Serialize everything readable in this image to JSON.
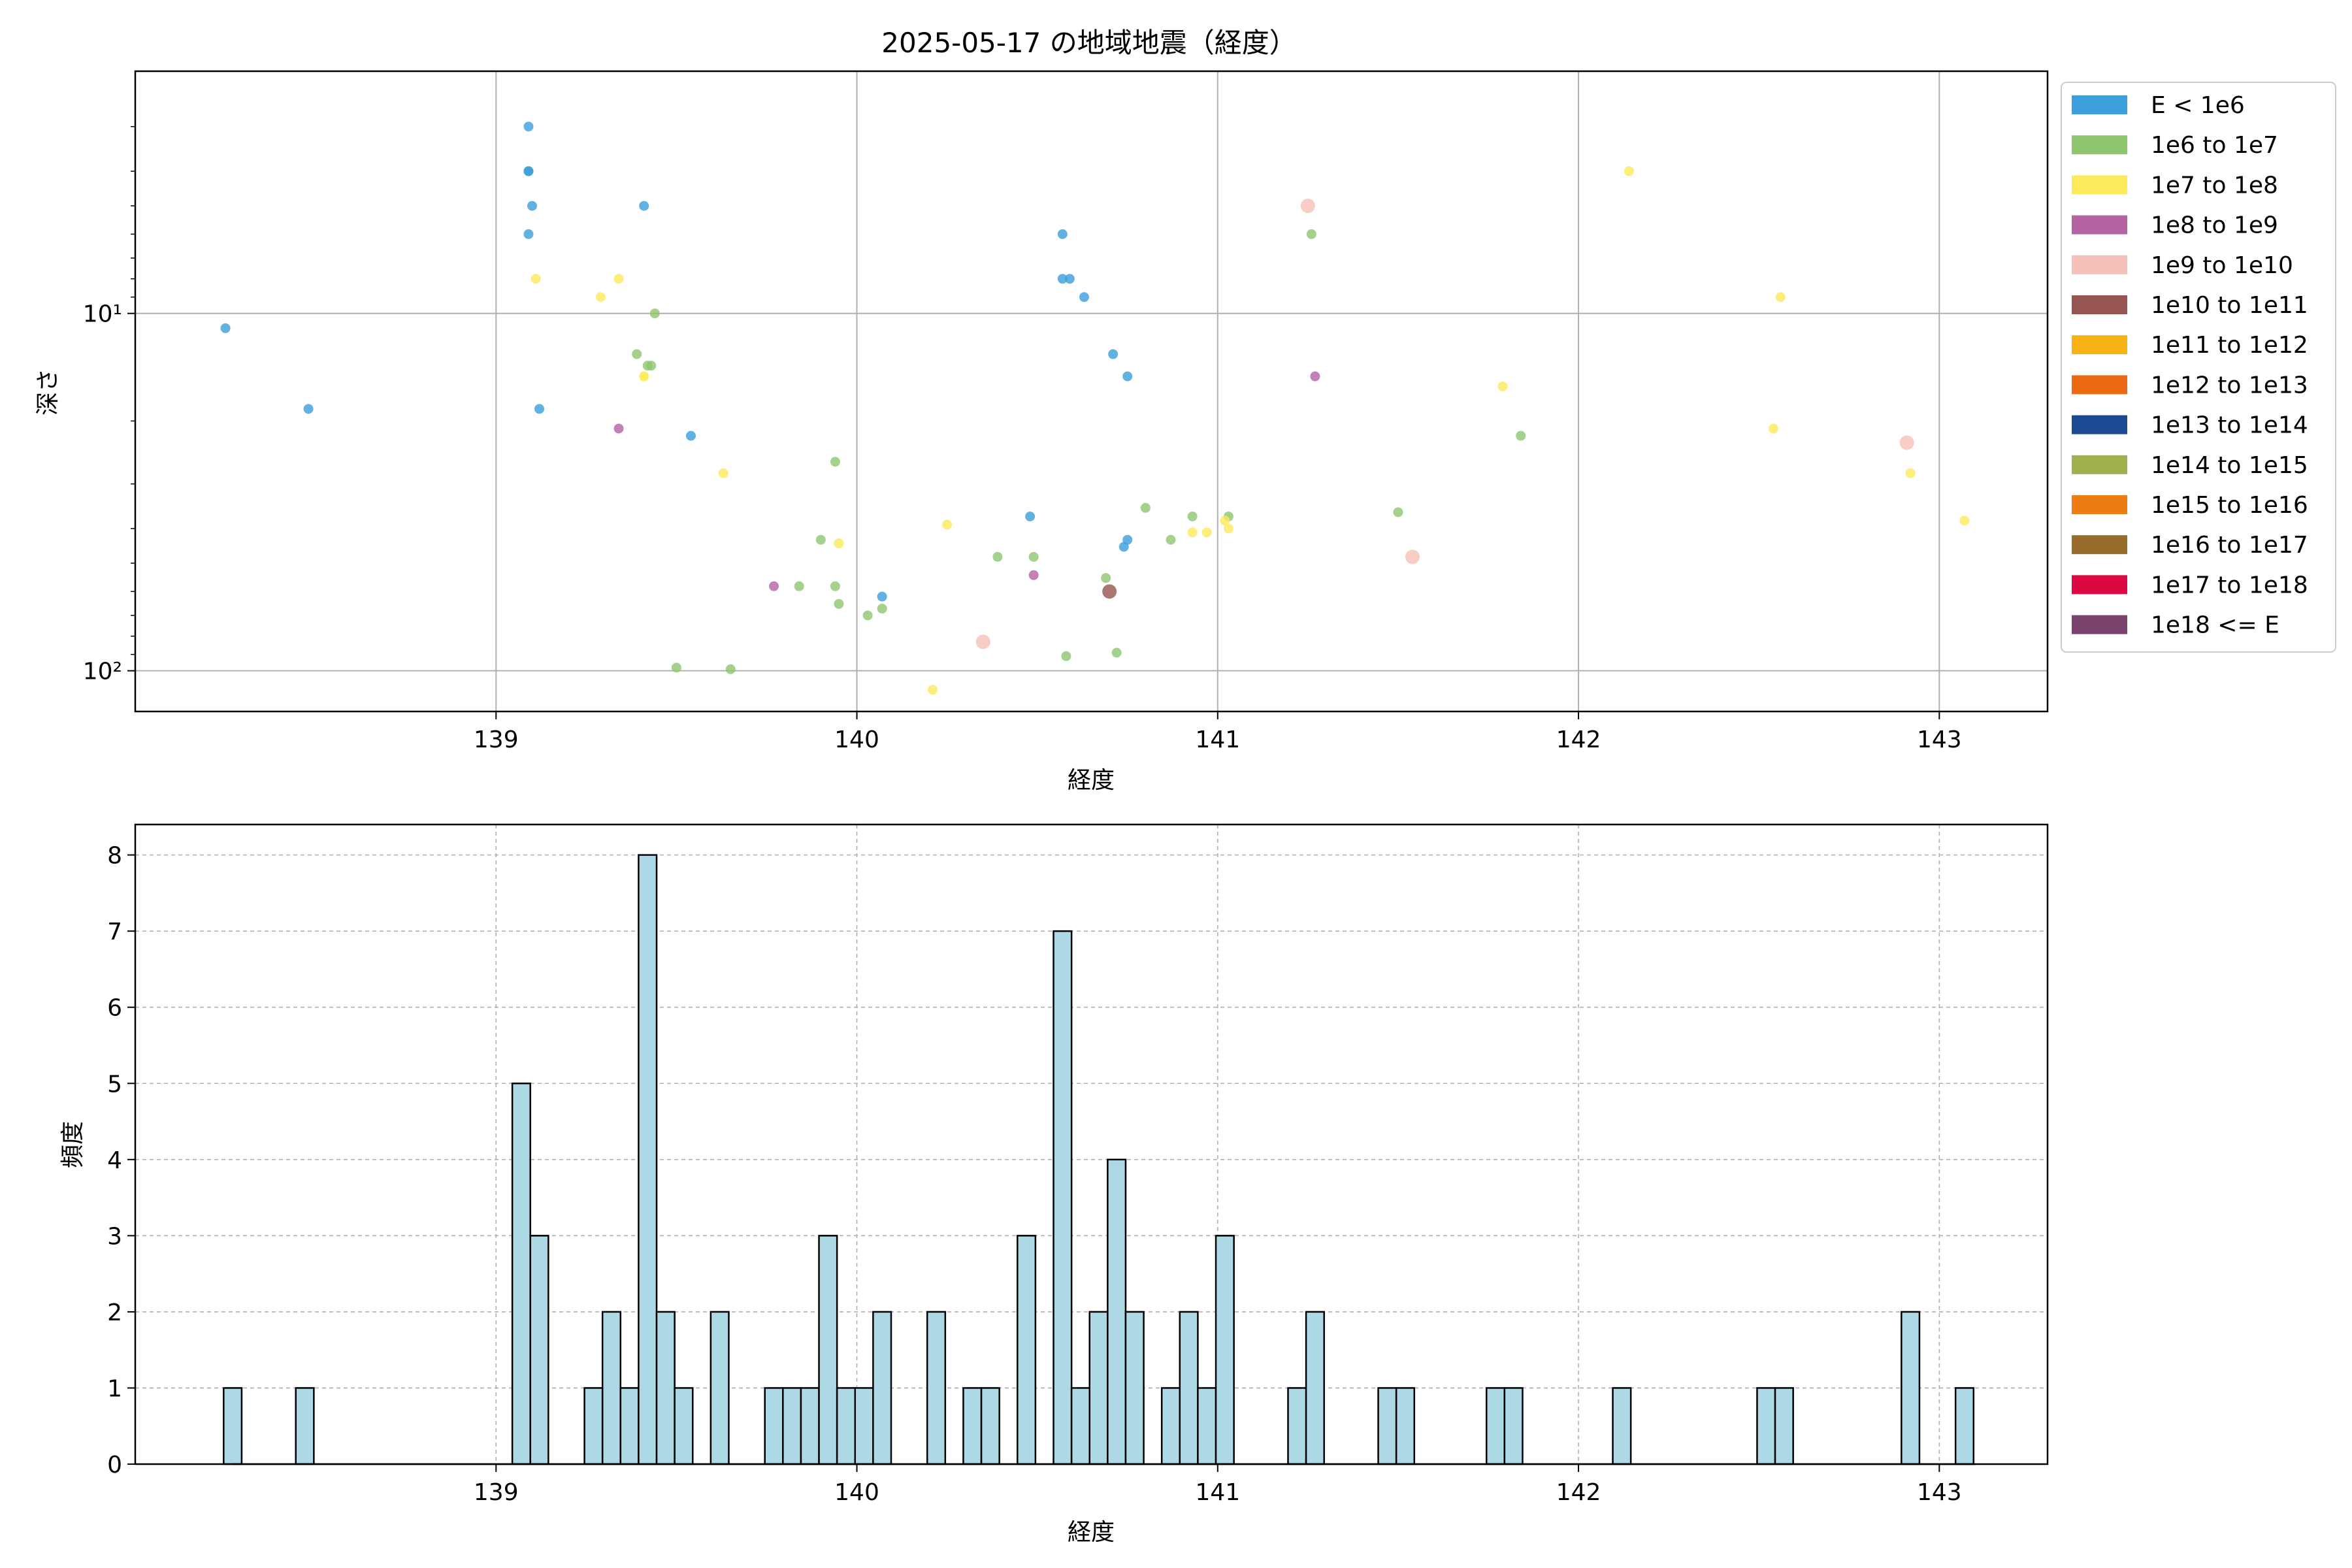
{
  "chart_data": [
    {
      "type": "scatter",
      "title": "2025-05-17 の地域地震（経度）",
      "xlabel": "経度",
      "ylabel": "深さ",
      "xlim": [
        138.0,
        143.3
      ],
      "ylim": [
        130,
        2.1
      ],
      "yscale": "log",
      "y_inverted": true,
      "grid": true,
      "x_ticks": [
        139,
        140,
        141,
        142,
        143
      ],
      "y_ticks": [
        {
          "value": 10,
          "label": "10¹"
        },
        {
          "value": 100,
          "label": "10²"
        }
      ],
      "legend_position": "outside-right",
      "legend": [
        {
          "label": "E < 1e6",
          "color": "#3a9fdb"
        },
        {
          "label": "1e6 to 1e7",
          "color": "#8dc66f"
        },
        {
          "label": "1e7 to 1e8",
          "color": "#fdea5b"
        },
        {
          "label": "1e8 to 1e9",
          "color": "#b463a3"
        },
        {
          "label": "1e9 to 1e10",
          "color": "#f5c0b8"
        },
        {
          "label": "1e10 to 1e11",
          "color": "#965550"
        },
        {
          "label": "1e11 to 1e12",
          "color": "#f7b314"
        },
        {
          "label": "1e12 to 1e13",
          "color": "#ec6914"
        },
        {
          "label": "1e13 to 1e14",
          "color": "#1b4a93"
        },
        {
          "label": "1e14 to 1e15",
          "color": "#a1b04b"
        },
        {
          "label": "1e15 to 1e16",
          "color": "#ee7c14"
        },
        {
          "label": "1e16 to 1e17",
          "color": "#976d2c"
        },
        {
          "label": "1e17 to 1e18",
          "color": "#dc0842"
        },
        {
          "label": "1e18 <= E",
          "color": "#7a436e"
        }
      ],
      "series": [
        {
          "name": "E < 1e6",
          "points": [
            [
              138.25,
              11
            ],
            [
              138.48,
              18.5
            ],
            [
              139.09,
              3
            ],
            [
              139.09,
              4
            ],
            [
              139.09,
              4
            ],
            [
              139.1,
              5
            ],
            [
              139.09,
              6
            ],
            [
              139.12,
              18.5
            ],
            [
              139.41,
              5
            ],
            [
              139.54,
              22
            ],
            [
              140.07,
              62
            ],
            [
              140.48,
              37
            ],
            [
              140.57,
              6
            ],
            [
              140.57,
              8
            ],
            [
              140.59,
              8
            ],
            [
              140.63,
              9
            ],
            [
              140.71,
              13
            ],
            [
              140.75,
              15
            ],
            [
              140.74,
              45
            ],
            [
              140.75,
              43
            ]
          ]
        },
        {
          "name": "1e6 to 1e7",
          "points": [
            [
              139.39,
              13
            ],
            [
              139.43,
              14
            ],
            [
              139.42,
              14
            ],
            [
              139.44,
              10
            ],
            [
              139.5,
              98
            ],
            [
              139.65,
              99
            ],
            [
              139.84,
              58
            ],
            [
              139.9,
              43
            ],
            [
              139.94,
              26
            ],
            [
              139.94,
              58
            ],
            [
              139.95,
              65
            ],
            [
              140.03,
              70
            ],
            [
              140.07,
              67
            ],
            [
              140.39,
              48
            ],
            [
              140.49,
              48
            ],
            [
              140.58,
              91
            ],
            [
              140.69,
              55
            ],
            [
              140.72,
              89
            ],
            [
              140.8,
              35
            ],
            [
              140.87,
              43
            ],
            [
              140.93,
              37
            ],
            [
              141.03,
              37
            ],
            [
              141.26,
              6
            ],
            [
              141.5,
              36
            ],
            [
              141.84,
              22
            ]
          ]
        },
        {
          "name": "1e7 to 1e8",
          "points": [
            [
              139.11,
              8
            ],
            [
              139.29,
              9
            ],
            [
              139.34,
              8
            ],
            [
              139.41,
              15
            ],
            [
              139.41,
              15
            ],
            [
              139.63,
              28
            ],
            [
              139.95,
              44
            ],
            [
              140.21,
              113
            ],
            [
              140.25,
              39
            ],
            [
              140.93,
              41
            ],
            [
              140.97,
              41
            ],
            [
              141.02,
              38
            ],
            [
              141.03,
              40
            ],
            [
              141.79,
              16
            ],
            [
              142.14,
              4
            ],
            [
              142.54,
              21
            ],
            [
              142.56,
              9
            ],
            [
              142.92,
              28
            ],
            [
              143.07,
              38
            ]
          ]
        },
        {
          "name": "1e8 to 1e9",
          "points": [
            [
              139.34,
              21
            ],
            [
              139.77,
              58
            ],
            [
              140.49,
              54
            ],
            [
              141.27,
              15
            ]
          ]
        },
        {
          "name": "1e9 to 1e10",
          "points": [
            [
              140.35,
              83
            ],
            [
              141.25,
              5
            ],
            [
              141.54,
              48
            ],
            [
              142.91,
              23
            ]
          ]
        },
        {
          "name": "1e10 to 1e11",
          "points": [
            [
              140.7,
              60
            ]
          ]
        }
      ]
    },
    {
      "type": "bar",
      "title": "",
      "xlabel": "経度",
      "ylabel": "頻度",
      "xlim": [
        138.0,
        143.3
      ],
      "ylim": [
        0,
        8.4
      ],
      "grid": true,
      "x_ticks": [
        139,
        140,
        141,
        142,
        143
      ],
      "y_ticks": [
        0,
        1,
        2,
        3,
        4,
        5,
        6,
        7,
        8
      ],
      "color": "#add8e6",
      "bin_width": 0.05,
      "x": [
        138.27,
        138.47,
        139.07,
        139.12,
        139.27,
        139.32,
        139.37,
        139.42,
        139.47,
        139.52,
        139.62,
        139.77,
        139.82,
        139.87,
        139.92,
        139.97,
        140.02,
        140.07,
        140.22,
        140.32,
        140.37,
        140.47,
        140.57,
        140.62,
        140.67,
        140.72,
        140.77,
        140.87,
        140.92,
        140.97,
        141.02,
        141.22,
        141.27,
        141.47,
        141.52,
        141.77,
        141.82,
        142.12,
        142.52,
        142.57,
        142.92,
        143.07
      ],
      "values": [
        1,
        1,
        5,
        3,
        1,
        2,
        1,
        8,
        2,
        1,
        2,
        1,
        1,
        1,
        3,
        1,
        1,
        2,
        2,
        1,
        1,
        3,
        7,
        1,
        2,
        4,
        2,
        1,
        2,
        1,
        3,
        1,
        2,
        1,
        1,
        1,
        1,
        1,
        1,
        1,
        2,
        1
      ]
    }
  ]
}
